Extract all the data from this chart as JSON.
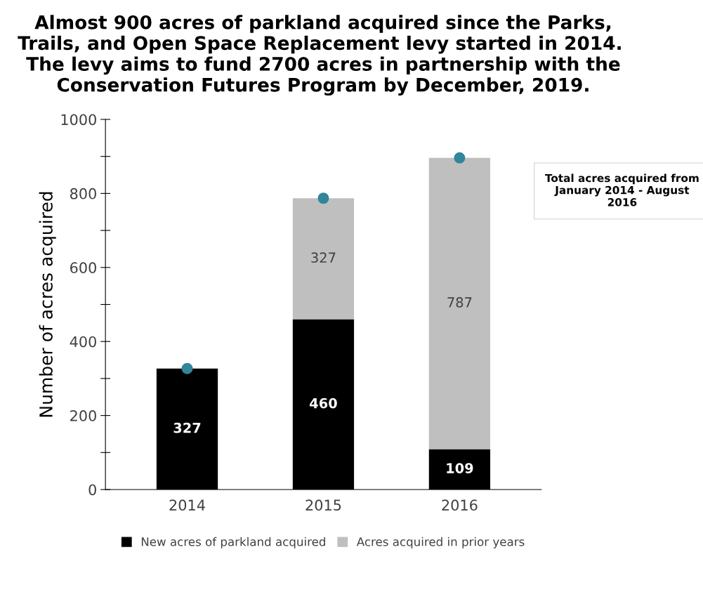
{
  "chart_data": {
    "type": "bar",
    "stacked": true,
    "title": "Almost 900 acres of parkland acquired since the Parks, Trails, and Open Space Replacement levy started in 2014.  The levy aims to fund 2700 acres in partnership with the Conservation Futures Program by December, 2019.",
    "ylabel": "Number of acres acquired",
    "categories": [
      "2014",
      "2015",
      "2016"
    ],
    "series": [
      {
        "name": "New acres of parkland acquired",
        "color": "#000000",
        "values": [
          327,
          460,
          109
        ],
        "value_labels": [
          "327",
          "460",
          "109"
        ]
      },
      {
        "name": "Acres acquired in prior years",
        "color": "#bfbfbf",
        "values": [
          null,
          327,
          787
        ],
        "value_labels": [
          null,
          "327",
          "787"
        ]
      },
      {
        "type": "scatter",
        "color": "#31869b",
        "values": [
          327,
          787,
          896
        ],
        "marker": "circle"
      }
    ],
    "ylim": [
      0,
      1000
    ],
    "yticks": [
      0,
      {
        "value": 100,
        "label": null
      },
      200,
      {
        "value": 300,
        "label": null
      },
      400,
      {
        "value": 500,
        "label": null
      },
      600,
      {
        "value": 700,
        "label": null
      },
      800,
      {
        "value": 900,
        "label": null
      },
      1000
    ],
    "grid": false,
    "legend": "bottom",
    "annotations": [
      "Total acres acquired from January 2014 - August 2016"
    ]
  }
}
